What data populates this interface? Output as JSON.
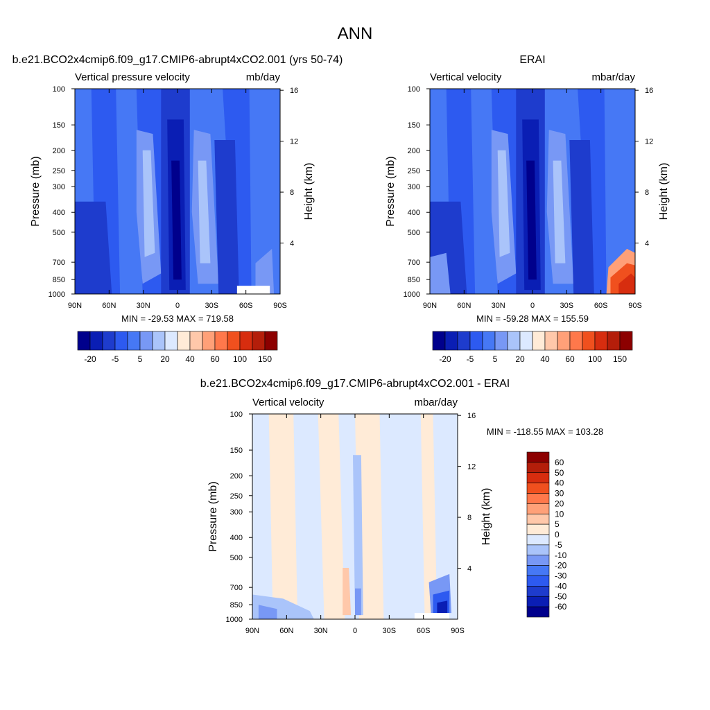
{
  "page_title": "ANN",
  "chart_data": [
    {
      "type": "heatmap",
      "title": "b.e21.BCO2x4cmip6.f09_g17.CMIP6-abrupt4xCO2.001 (yrs 50-74)",
      "left_string": "Vertical pressure velocity",
      "right_string": "mb/day",
      "ylabel": "Pressure (mb)",
      "ylabel_right": "Height (km)",
      "x_ticks": [
        "90N",
        "60N",
        "30N",
        "0",
        "30S",
        "60S",
        "90S"
      ],
      "y_ticks": [
        "100",
        "150",
        "200",
        "250",
        "300",
        "400",
        "500",
        "700",
        "850",
        "1000"
      ],
      "height_ticks": [
        "4",
        "8",
        "12",
        "16"
      ],
      "stats": "MIN = -29.53  MAX = 719.58",
      "colorbar_labels": [
        "-20",
        "-5",
        "5",
        "20",
        "40",
        "60",
        "100",
        "150"
      ],
      "colorbar_colors": [
        "#00008c",
        "#0a1eb4",
        "#1e3ccd",
        "#2d5af0",
        "#4678f5",
        "#7898f5",
        "#aac4fa",
        "#dce9ff",
        "#ffebd7",
        "#ffc8aa",
        "#ffa078",
        "#ff784b",
        "#f0501e",
        "#d72d0f",
        "#b41e0a",
        "#8c0000"
      ],
      "field_colors": [
        "#2d5af0",
        "#4678f5",
        "#1e3ccd",
        "#7898f5",
        "#aac4fa",
        "#0a1eb4",
        "#00008c"
      ],
      "mask_color": "#ffffff"
    },
    {
      "type": "heatmap",
      "title": "ERAI",
      "left_string": "Vertical velocity",
      "right_string": "mbar/day",
      "ylabel": "Pressure (mb)",
      "ylabel_right": "Height (km)",
      "x_ticks": [
        "90N",
        "60N",
        "30N",
        "0",
        "30S",
        "60S",
        "90S"
      ],
      "y_ticks": [
        "100",
        "150",
        "200",
        "250",
        "300",
        "400",
        "500",
        "700",
        "850",
        "1000"
      ],
      "height_ticks": [
        "4",
        "8",
        "12",
        "16"
      ],
      "stats": "MIN = -59.28  MAX = 155.59",
      "colorbar_labels": [
        "-20",
        "-5",
        "5",
        "20",
        "40",
        "60",
        "100",
        "150"
      ],
      "colorbar_colors": [
        "#00008c",
        "#0a1eb4",
        "#1e3ccd",
        "#2d5af0",
        "#4678f5",
        "#7898f5",
        "#aac4fa",
        "#dce9ff",
        "#ffebd7",
        "#ffc8aa",
        "#ffa078",
        "#ff784b",
        "#f0501e",
        "#d72d0f",
        "#b41e0a",
        "#8c0000"
      ],
      "field_colors": [
        "#2d5af0",
        "#4678f5",
        "#1e3ccd",
        "#7898f5",
        "#aac4fa",
        "#0a1eb4",
        "#00008c"
      ],
      "warm_colors": [
        "#ffa078",
        "#f0501e",
        "#d72d0f"
      ]
    },
    {
      "type": "heatmap",
      "title": "b.e21.BCO2x4cmip6.f09_g17.CMIP6-abrupt4xCO2.001 - ERAI",
      "left_string": "Vertical velocity",
      "right_string": "mbar/day",
      "ylabel": "Pressure (mb)",
      "ylabel_right": "Height (km)",
      "x_ticks": [
        "90N",
        "60N",
        "30N",
        "0",
        "30S",
        "60S",
        "90S"
      ],
      "y_ticks": [
        "100",
        "150",
        "200",
        "250",
        "300",
        "400",
        "500",
        "700",
        "850",
        "1000"
      ],
      "height_ticks": [
        "4",
        "8",
        "12",
        "16"
      ],
      "stats": "MIN = -118.55  MAX = 103.28",
      "colorbar_labels": [
        "60",
        "50",
        "40",
        "30",
        "20",
        "10",
        "5",
        "0",
        "-5",
        "-10",
        "-20",
        "-30",
        "-40",
        "-50",
        "-60"
      ],
      "colorbar_colors": [
        "#8c0000",
        "#b41e0a",
        "#d72d0f",
        "#f0501e",
        "#ff784b",
        "#ffa078",
        "#ffc8aa",
        "#ffebd7",
        "#dce9ff",
        "#aac4fa",
        "#7898f5",
        "#4678f5",
        "#2d5af0",
        "#1e3ccd",
        "#0a1eb4",
        "#00008c"
      ],
      "field_colors": [
        "#dce9ff",
        "#ffebd7",
        "#aac4fa",
        "#ffc8aa",
        "#7898f5",
        "#2d5af0",
        "#0a1eb4"
      ],
      "mask_color": "#ffffff"
    }
  ]
}
